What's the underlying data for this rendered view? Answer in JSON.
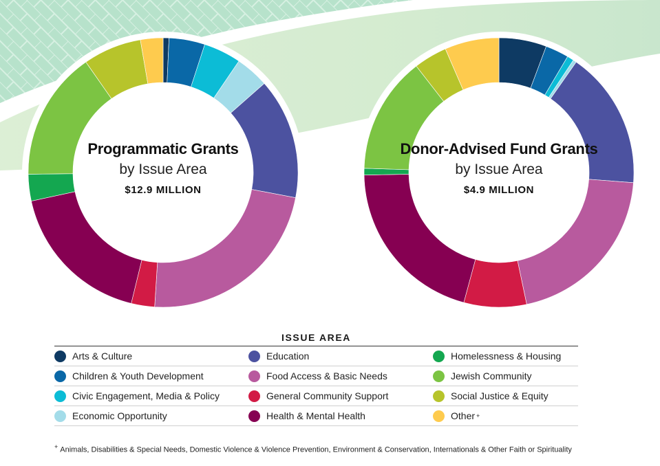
{
  "colors": {
    "arts": "#0e3a63",
    "children": "#0a68a7",
    "civic": "#0cbcd6",
    "economic": "#a3dce9",
    "education": "#4c52a0",
    "food": "#b85a9e",
    "general": "#d21b45",
    "health": "#860052",
    "homelessness": "#14a750",
    "jewish": "#7cc443",
    "social": "#b7c42b",
    "other": "#fecb4e"
  },
  "charts": [
    {
      "title": "Programmatic Grants",
      "subtitle": "by Issue Area",
      "amount": "$12.9 MILLION"
    },
    {
      "title": "Donor-Advised Fund Grants",
      "subtitle": "by Issue Area",
      "amount": "$4.9 MILLION"
    }
  ],
  "chart_data": [
    {
      "type": "pie",
      "title": "Programmatic Grants by Issue Area",
      "total": "$12.9 MILLION",
      "unit": "% share (estimated)",
      "categories": [
        "Arts & Culture",
        "Children & Youth Development",
        "Civic Engagement, Media & Policy",
        "Economic Opportunity",
        "Education",
        "Food Access & Basic Needs",
        "General Community Support",
        "Health & Mental Health",
        "Homelessness & Housing",
        "Jewish Community",
        "Social Justice & Equity",
        "Other"
      ],
      "values": [
        0.7,
        4.3,
        4.5,
        4.0,
        14.5,
        23.0,
        2.8,
        17.8,
        3.2,
        15.5,
        7.0,
        2.7
      ]
    },
    {
      "type": "pie",
      "title": "Donor-Advised Fund Grants by Issue Area",
      "total": "$4.9 MILLION",
      "unit": "% share (estimated)",
      "categories": [
        "Arts & Culture",
        "Children & Youth Development",
        "Civic Engagement, Media & Policy",
        "Economic Opportunity",
        "Education",
        "Food Access & Basic Needs",
        "General Community Support",
        "Health & Mental Health",
        "Homelessness & Housing",
        "Jewish Community",
        "Social Justice & Equity",
        "Other"
      ],
      "values": [
        5.7,
        2.8,
        0.8,
        0.4,
        16.5,
        20.5,
        7.5,
        20.5,
        0.8,
        14.0,
        4.0,
        6.5
      ]
    }
  ],
  "legend": {
    "title": "ISSUE AREA",
    "rows": [
      [
        {
          "label": "Arts & Culture",
          "key": "arts"
        },
        {
          "label": "Education",
          "key": "education"
        },
        {
          "label": "Homelessness & Housing",
          "key": "homelessness"
        }
      ],
      [
        {
          "label": "Children & Youth Development",
          "key": "children"
        },
        {
          "label": "Food Access & Basic Needs",
          "key": "food"
        },
        {
          "label": "Jewish Community",
          "key": "jewish"
        }
      ],
      [
        {
          "label": "Civic Engagement, Media & Policy",
          "key": "civic"
        },
        {
          "label": "General Community Support",
          "key": "general"
        },
        {
          "label": "Social Justice & Equity",
          "key": "social"
        }
      ],
      [
        {
          "label": "Economic Opportunity",
          "key": "economic"
        },
        {
          "label": "Health & Mental Health",
          "key": "health"
        },
        {
          "label": "Other",
          "key": "other",
          "sup": "+"
        }
      ]
    ]
  },
  "footnote": {
    "mark": "+",
    "text": "Animals, Disabilities & Special Needs, Domestic Violence & Violence Prevention, Environment & Conservation, Internationals & Other Faith or Spirituality"
  }
}
